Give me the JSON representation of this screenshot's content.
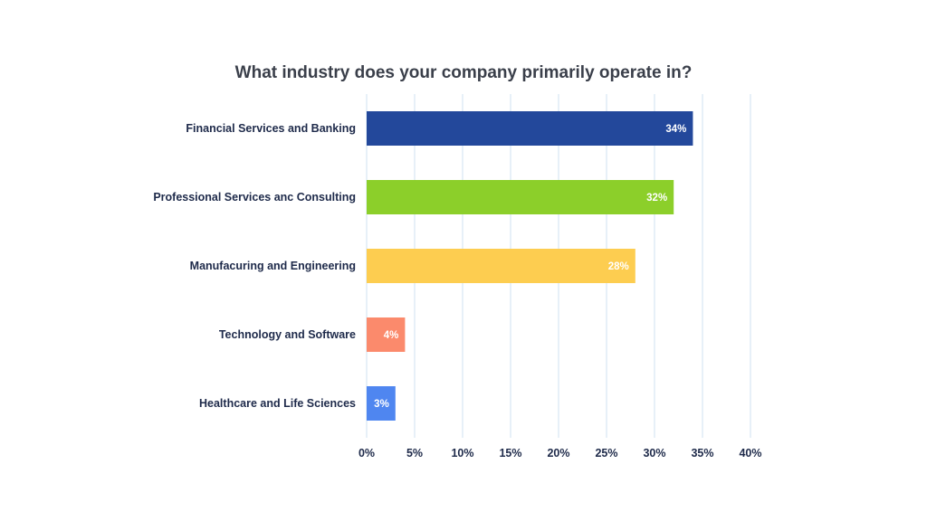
{
  "chart_data": {
    "type": "bar",
    "orientation": "horizontal",
    "title": "What industry does your company primarily operate in?",
    "xlabel": "",
    "ylabel": "",
    "categories": [
      "Financial Services and Banking",
      "Professional Services anc Consulting",
      "Manufacuring and Engineering",
      "Technology and Software",
      "Healthcare and Life Sciences"
    ],
    "values": [
      34,
      32,
      28,
      4,
      3
    ],
    "value_labels": [
      "34%",
      "32%",
      "28%",
      "4%",
      "3%"
    ],
    "colors": [
      "#23489b",
      "#8ccf2a",
      "#fdcd50",
      "#fb8a6c",
      "#4f86f0"
    ],
    "xlim": [
      0,
      40
    ],
    "ticks": [
      0,
      5,
      10,
      15,
      20,
      25,
      30,
      35,
      40
    ],
    "tick_labels": [
      "0%",
      "5%",
      "10%",
      "15%",
      "20%",
      "25%",
      "30%",
      "35%",
      "40%"
    ],
    "grid": true,
    "legend": "none"
  }
}
